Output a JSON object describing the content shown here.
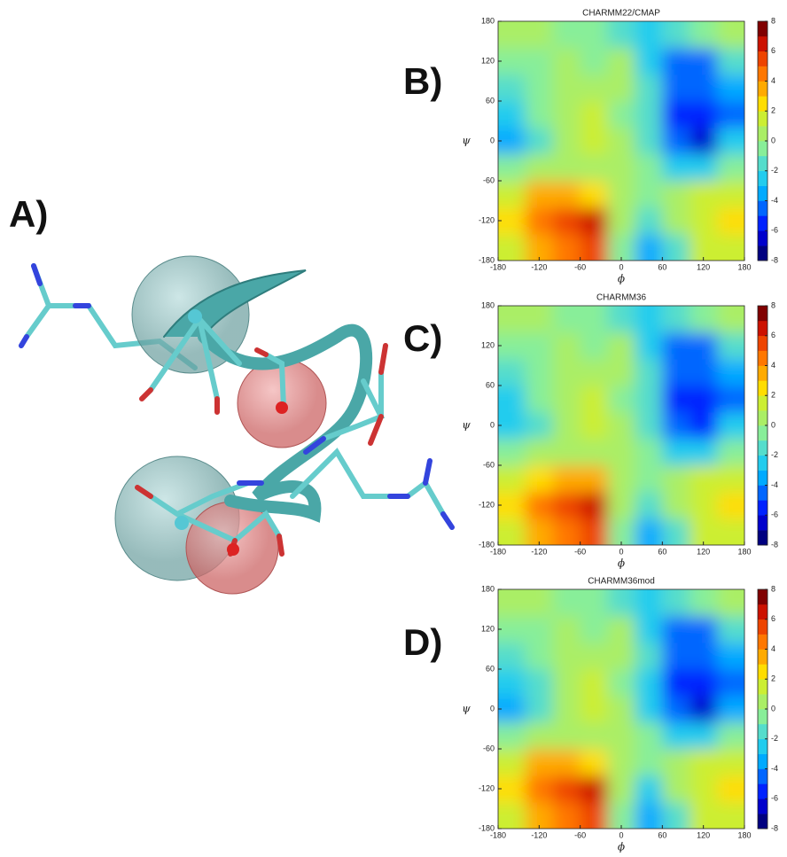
{
  "panel_labels": [
    "A)",
    "B)",
    "C)",
    "D)"
  ],
  "chart_data": [
    {
      "type": "contour",
      "title": "CHARMM22/CMAP",
      "xlabel": "ϕ",
      "ylabel": "ψ",
      "x": [
        -160,
        -120,
        -80,
        -40,
        0,
        40,
        80,
        120,
        160
      ],
      "y": [
        -160,
        -120,
        -80,
        -40,
        0,
        40,
        80,
        120,
        160
      ],
      "z": [
        [
          1,
          3,
          4,
          5,
          -1,
          -4,
          -2,
          1,
          1
        ],
        [
          2,
          4,
          5,
          6,
          0,
          -2,
          0,
          1,
          2
        ],
        [
          1,
          3,
          3,
          2,
          0,
          -1,
          0,
          1,
          1
        ],
        [
          -1,
          0,
          0,
          0,
          0,
          -1,
          -3,
          -3,
          -1
        ],
        [
          -4,
          -2,
          0,
          1,
          0,
          -2,
          -5,
          -7,
          -3
        ],
        [
          -3,
          -1,
          0,
          1,
          -1,
          -2,
          -6,
          -6,
          -5
        ],
        [
          -2,
          -1,
          0,
          0,
          0,
          -2,
          -5,
          -5,
          -4
        ],
        [
          -1,
          -1,
          0,
          -1,
          0,
          -3,
          -5,
          -5,
          -2
        ],
        [
          0,
          0,
          -1,
          -1,
          -2,
          -3,
          -2,
          -1,
          0
        ]
      ],
      "xlim": [
        -180,
        180
      ],
      "ylim": [
        -180,
        180
      ],
      "xticks": [
        -180,
        -120,
        -60,
        0,
        60,
        120,
        180
      ],
      "yticks": [
        -180,
        -120,
        -60,
        0,
        60,
        120,
        180
      ],
      "colorbar": {
        "lim": [
          -8,
          8
        ],
        "ticks": [
          -8,
          -6,
          -4,
          -2,
          0,
          2,
          4,
          6,
          8
        ],
        "colors": [
          "#000080",
          "#0000cc",
          "#0022ff",
          "#0066ff",
          "#00aaff",
          "#22ccee",
          "#55ddcc",
          "#88ee99",
          "#aaee66",
          "#ccee33",
          "#ffdd00",
          "#ffaa00",
          "#ff7700",
          "#ee4400",
          "#cc1100",
          "#800000"
        ]
      }
    },
    {
      "type": "contour",
      "title": "CHARMM36",
      "xlabel": "ϕ",
      "ylabel": "ψ",
      "x": [
        -160,
        -120,
        -80,
        -40,
        0,
        40,
        80,
        120,
        160
      ],
      "y": [
        -160,
        -120,
        -80,
        -40,
        0,
        40,
        80,
        120,
        160
      ],
      "z": [
        [
          1,
          3,
          4,
          5,
          -1,
          -4,
          -2,
          1,
          1
        ],
        [
          2,
          4,
          5,
          6,
          0,
          -2,
          0,
          1,
          2
        ],
        [
          1,
          2,
          3,
          3,
          0,
          -1,
          0,
          1,
          1
        ],
        [
          -1,
          0,
          0,
          0,
          0,
          -1,
          -3,
          -3,
          -1
        ],
        [
          -3,
          -2,
          0,
          1,
          0,
          -2,
          -5,
          -6,
          -3
        ],
        [
          -3,
          -1,
          0,
          1,
          -1,
          -2,
          -6,
          -6,
          -5
        ],
        [
          -2,
          -1,
          0,
          0,
          0,
          -2,
          -5,
          -5,
          -4
        ],
        [
          -1,
          -1,
          0,
          -1,
          0,
          -3,
          -5,
          -5,
          -2
        ],
        [
          0,
          0,
          -1,
          -1,
          -2,
          -3,
          -2,
          -1,
          0
        ]
      ],
      "xlim": [
        -180,
        180
      ],
      "ylim": [
        -180,
        180
      ],
      "xticks": [
        -180,
        -120,
        -60,
        0,
        60,
        120,
        180
      ],
      "yticks": [
        -180,
        -120,
        -60,
        0,
        60,
        120,
        180
      ],
      "colorbar": {
        "lim": [
          -8,
          8
        ],
        "ticks": [
          -8,
          -6,
          -4,
          -2,
          0,
          2,
          4,
          6,
          8
        ],
        "colors": [
          "#000080",
          "#0000cc",
          "#0022ff",
          "#0066ff",
          "#00aaff",
          "#22ccee",
          "#55ddcc",
          "#88ee99",
          "#aaee66",
          "#ccee33",
          "#ffdd00",
          "#ffaa00",
          "#ff7700",
          "#ee4400",
          "#cc1100",
          "#800000"
        ]
      }
    },
    {
      "type": "contour",
      "title": "CHARMM36mod",
      "xlabel": "ϕ",
      "ylabel": "ψ",
      "x": [
        -160,
        -120,
        -80,
        -40,
        0,
        40,
        80,
        120,
        160
      ],
      "y": [
        -160,
        -120,
        -80,
        -40,
        0,
        40,
        80,
        120,
        160
      ],
      "z": [
        [
          1,
          3,
          4,
          5,
          -1,
          -4,
          -2,
          1,
          1
        ],
        [
          2,
          4,
          5,
          6,
          0,
          -3,
          0,
          1,
          2
        ],
        [
          1,
          3,
          3,
          2,
          0,
          -1,
          0,
          1,
          1
        ],
        [
          -1,
          0,
          0,
          0,
          0,
          -1,
          -3,
          -3,
          -1
        ],
        [
          -4,
          -2,
          0,
          1,
          0,
          -3,
          -5,
          -7,
          -4
        ],
        [
          -3,
          -2,
          0,
          1,
          -1,
          -3,
          -6,
          -6,
          -5
        ],
        [
          -2,
          -1,
          0,
          0,
          0,
          -2,
          -5,
          -5,
          -4
        ],
        [
          -1,
          -1,
          0,
          -1,
          0,
          -3,
          -5,
          -5,
          -2
        ],
        [
          0,
          0,
          -1,
          -1,
          -2,
          -3,
          -2,
          -1,
          0
        ]
      ],
      "xlim": [
        -180,
        180
      ],
      "ylim": [
        -180,
        180
      ],
      "xticks": [
        -180,
        -120,
        -60,
        0,
        60,
        120,
        180
      ],
      "yticks": [
        -180,
        -120,
        -60,
        0,
        60,
        120,
        180
      ],
      "colorbar": {
        "lim": [
          -8,
          8
        ],
        "ticks": [
          -8,
          -6,
          -4,
          -2,
          0,
          2,
          4,
          6,
          8
        ],
        "colors": [
          "#000080",
          "#0000cc",
          "#0022ff",
          "#0066ff",
          "#00aaff",
          "#22ccee",
          "#55ddcc",
          "#88ee99",
          "#aaee66",
          "#ccee33",
          "#ffdd00",
          "#ffaa00",
          "#ff7700",
          "#ee4400",
          "#cc1100",
          "#800000"
        ]
      }
    }
  ]
}
